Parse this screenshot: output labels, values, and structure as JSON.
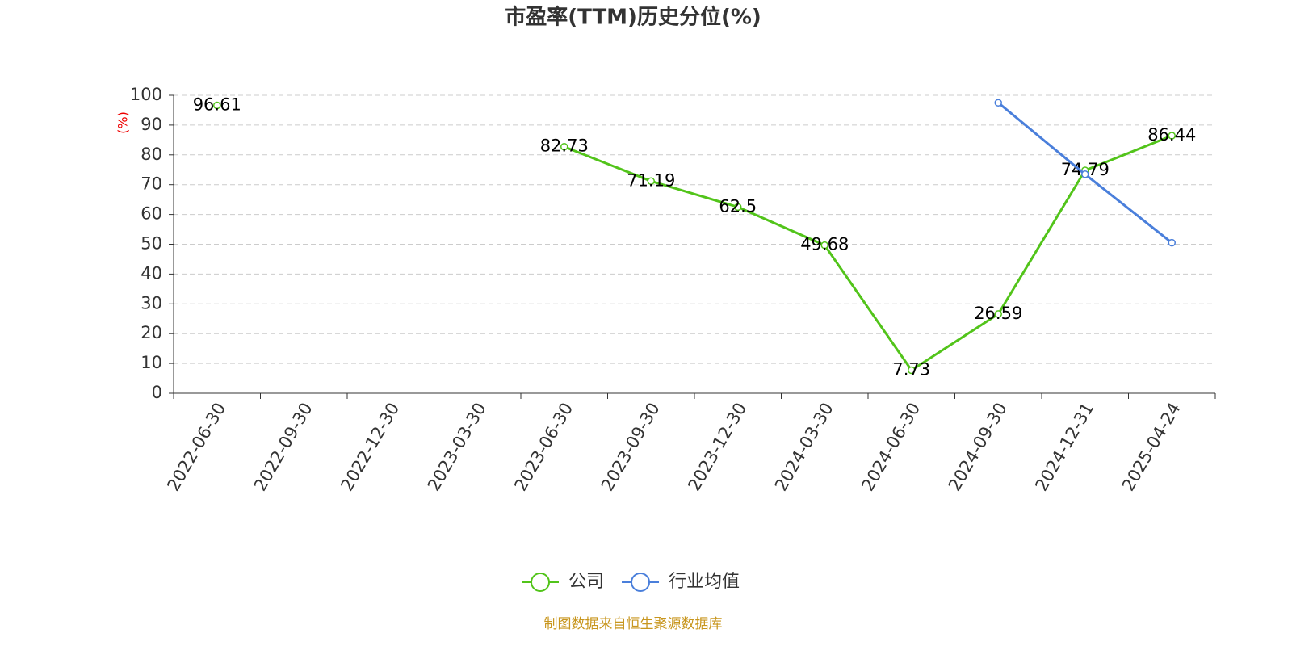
{
  "chart_data": {
    "type": "line",
    "title": "市盈率(TTM)历史分位(%)",
    "y_label": "(%)",
    "categories": [
      "2022-06-30",
      "2022-09-30",
      "2022-12-30",
      "2023-03-30",
      "2023-06-30",
      "2023-09-30",
      "2023-12-30",
      "2024-03-30",
      "2024-06-30",
      "2024-09-30",
      "2024-12-31",
      "2025-04-24"
    ],
    "series": [
      {
        "name": "公司",
        "color": "#52c41a",
        "show_labels": true,
        "values": [
          96.61,
          null,
          null,
          null,
          82.73,
          71.19,
          62.5,
          49.68,
          7.73,
          26.59,
          74.79,
          86.44
        ]
      },
      {
        "name": "行业均值",
        "color": "#4a7fdb",
        "show_labels": false,
        "values": [
          null,
          null,
          null,
          null,
          null,
          null,
          null,
          null,
          null,
          97.5,
          73.5,
          50.5
        ]
      }
    ],
    "ylim": [
      0,
      100
    ],
    "yticks": [
      0,
      10,
      20,
      30,
      40,
      50,
      60,
      70,
      80,
      90,
      100
    ],
    "grid": true,
    "source": "制图数据来自恒生聚源数据库"
  }
}
